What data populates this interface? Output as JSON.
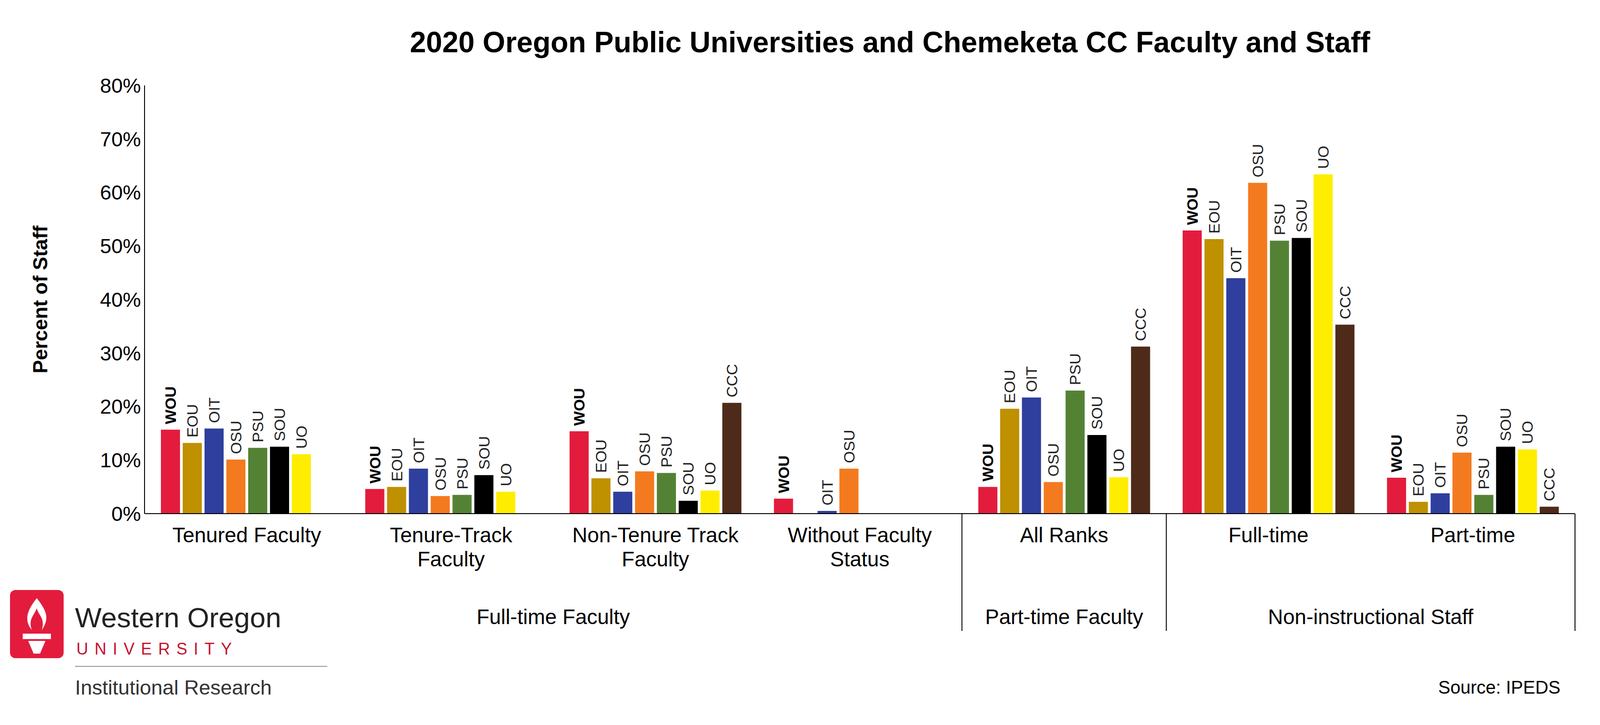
{
  "chart_data": {
    "type": "bar",
    "title": "2020 Oregon Public Universities and Chemeketa CC Faculty and Staff",
    "y_label": "Percent of Staff",
    "categories": [
      "Tenured Faculty",
      "Tenure-Track Faculty",
      "Non-Tenure Track Faculty",
      "Without Faculty Status",
      "All Ranks",
      "Full-time",
      "Part-time"
    ],
    "category_groups": [
      {
        "label": "Full-time Faculty",
        "categories": [
          "Tenured Faculty",
          "Tenure-Track Faculty",
          "Non-Tenure Track Faculty",
          "Without Faculty Status"
        ]
      },
      {
        "label": "Part-time Faculty",
        "categories": [
          "All Ranks"
        ]
      },
      {
        "label": "Non-instructional Staff",
        "categories": [
          "Full-time",
          "Part-time"
        ]
      }
    ],
    "series": [
      {
        "name": "WOU",
        "color": "#e31c3d",
        "values": [
          15.7,
          4.6,
          15.4,
          2.8,
          5.0,
          52.9,
          6.7
        ]
      },
      {
        "name": "EOU",
        "color": "#bf9000",
        "values": [
          13.2,
          5.0,
          6.6,
          null,
          19.6,
          51.3,
          2.2
        ]
      },
      {
        "name": "OIT",
        "color": "#2e3f9e",
        "values": [
          15.9,
          8.4,
          4.1,
          0.5,
          21.7,
          44.0,
          3.8
        ]
      },
      {
        "name": "OSU",
        "color": "#f47a1f",
        "values": [
          10.1,
          3.3,
          7.9,
          8.4,
          5.9,
          61.8,
          11.4
        ]
      },
      {
        "name": "PSU",
        "color": "#548235",
        "values": [
          12.3,
          3.5,
          7.6,
          null,
          23.0,
          51.0,
          3.5
        ]
      },
      {
        "name": "SOU",
        "color": "#000000",
        "values": [
          12.5,
          7.2,
          2.4,
          null,
          14.7,
          51.5,
          12.5
        ]
      },
      {
        "name": "UO",
        "color": "#ffed00",
        "values": [
          11.1,
          4.1,
          4.3,
          null,
          6.8,
          63.4,
          12.0
        ]
      },
      {
        "name": "CCC",
        "color": "#4e2a1a",
        "values": [
          null,
          null,
          20.7,
          null,
          31.2,
          35.3,
          1.3
        ]
      }
    ],
    "ylim": [
      0,
      80
    ],
    "yticks": [
      {
        "value": 0,
        "label": "0%"
      },
      {
        "value": 10,
        "label": "10%"
      },
      {
        "value": 20,
        "label": "20%"
      },
      {
        "value": 30,
        "label": "30%"
      },
      {
        "value": 40,
        "label": "40%"
      },
      {
        "value": 50,
        "label": "50%"
      },
      {
        "value": 60,
        "label": "60%"
      },
      {
        "value": 70,
        "label": "70%"
      },
      {
        "value": 80,
        "label": "80%"
      }
    ],
    "grid": false,
    "annotations": {
      "logo": [
        "Western Oregon",
        "UNIVERSITY"
      ],
      "department": "Institutional Research",
      "source": "Source: IPEDS"
    }
  }
}
